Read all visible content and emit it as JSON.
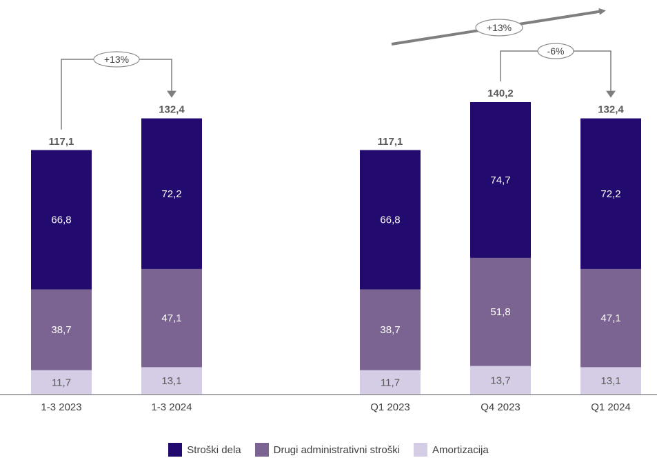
{
  "chart_data": {
    "type": "bar",
    "stacked": true,
    "categories": [
      "1-3 2023",
      "1-3 2024",
      "Q1 2023",
      "Q4 2023",
      "Q1 2024"
    ],
    "series": [
      {
        "name": "Amortizacija",
        "color": "#d5cde6",
        "label_color": "#595959",
        "values": [
          11.7,
          13.1,
          11.7,
          13.7,
          13.1
        ],
        "labels": [
          "11,7",
          "13,1",
          "11,7",
          "13,7",
          "13,1"
        ]
      },
      {
        "name": "Drugi administrativni stroški",
        "color": "#7b6491",
        "label_color": "#ffffff",
        "values": [
          38.7,
          47.1,
          38.7,
          51.8,
          47.1
        ],
        "labels": [
          "38,7",
          "47,1",
          "38,7",
          "51,8",
          "47,1"
        ]
      },
      {
        "name": "Stroški dela",
        "color": "#230a6e",
        "label_color": "#ffffff",
        "values": [
          66.8,
          72.2,
          66.8,
          74.7,
          72.2
        ],
        "labels": [
          "66,8",
          "72,2",
          "66,8",
          "74,7",
          "72,2"
        ]
      }
    ],
    "totals": [
      117.1,
      132.4,
      117.1,
      140.2,
      132.4
    ],
    "total_labels": [
      "117,1",
      "132,4",
      "117,1",
      "140,2",
      "132,4"
    ],
    "growth": [
      {
        "label": "+13%",
        "from": "1-3 2023",
        "to": "1-3 2024"
      },
      {
        "label": "-6%",
        "from": "Q4 2023",
        "to": "Q1 2024"
      },
      {
        "label": "+13%",
        "from": "Q1 2023",
        "to": "Q1 2024"
      }
    ],
    "legend_position": "bottom",
    "grid": false
  }
}
